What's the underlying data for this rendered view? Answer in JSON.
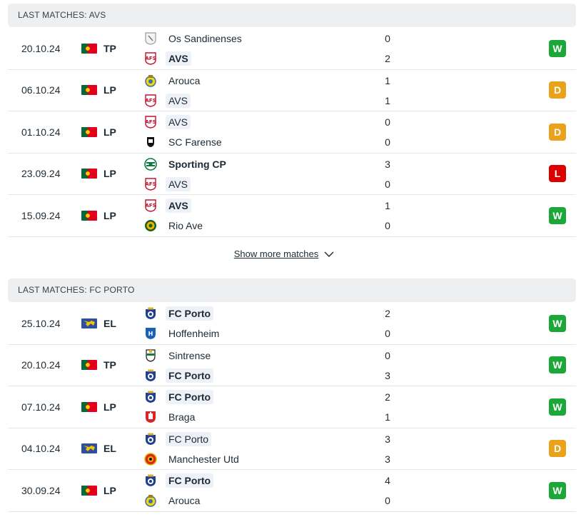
{
  "sections": [
    {
      "title": "LAST MATCHES: AVS",
      "matches": [
        {
          "date": "20.10.24",
          "flag": "portugal",
          "comp": "TP",
          "home": {
            "name": "Os Sandinenses",
            "logo": "sandinenses-logo",
            "highlight": false,
            "bold": false
          },
          "away": {
            "name": "AVS",
            "logo": "avs-logo",
            "highlight": true,
            "bold": true
          },
          "home_score": "0",
          "away_score": "2",
          "result": "W"
        },
        {
          "date": "06.10.24",
          "flag": "portugal",
          "comp": "LP",
          "home": {
            "name": "Arouca",
            "logo": "arouca-logo",
            "highlight": false,
            "bold": false
          },
          "away": {
            "name": "AVS",
            "logo": "avs-logo",
            "highlight": true,
            "bold": false
          },
          "home_score": "1",
          "away_score": "1",
          "result": "D"
        },
        {
          "date": "01.10.24",
          "flag": "portugal",
          "comp": "LP",
          "home": {
            "name": "AVS",
            "logo": "avs-logo",
            "highlight": true,
            "bold": false
          },
          "away": {
            "name": "SC Farense",
            "logo": "farense-logo",
            "highlight": false,
            "bold": false
          },
          "home_score": "0",
          "away_score": "0",
          "result": "D"
        },
        {
          "date": "23.09.24",
          "flag": "portugal",
          "comp": "LP",
          "home": {
            "name": "Sporting CP",
            "logo": "sporting-logo",
            "highlight": false,
            "bold": true
          },
          "away": {
            "name": "AVS",
            "logo": "avs-logo",
            "highlight": true,
            "bold": false
          },
          "home_score": "3",
          "away_score": "0",
          "result": "L"
        },
        {
          "date": "15.09.24",
          "flag": "portugal",
          "comp": "LP",
          "home": {
            "name": "AVS",
            "logo": "avs-logo",
            "highlight": true,
            "bold": true
          },
          "away": {
            "name": "Rio Ave",
            "logo": "rio-ave-logo",
            "highlight": false,
            "bold": false
          },
          "home_score": "1",
          "away_score": "0",
          "result": "W"
        }
      ],
      "show_more": "Show more matches"
    },
    {
      "title": "LAST MATCHES: FC PORTO",
      "matches": [
        {
          "date": "25.10.24",
          "flag": "europe",
          "comp": "EL",
          "home": {
            "name": "FC Porto",
            "logo": "porto-logo",
            "highlight": true,
            "bold": true
          },
          "away": {
            "name": "Hoffenheim",
            "logo": "hoffenheim-logo",
            "highlight": false,
            "bold": false
          },
          "home_score": "2",
          "away_score": "0",
          "result": "W"
        },
        {
          "date": "20.10.24",
          "flag": "portugal",
          "comp": "TP",
          "home": {
            "name": "Sintrense",
            "logo": "sintrense-logo",
            "highlight": false,
            "bold": false
          },
          "away": {
            "name": "FC Porto",
            "logo": "porto-logo",
            "highlight": true,
            "bold": true
          },
          "home_score": "0",
          "away_score": "3",
          "result": "W"
        },
        {
          "date": "07.10.24",
          "flag": "portugal",
          "comp": "LP",
          "home": {
            "name": "FC Porto",
            "logo": "porto-logo",
            "highlight": true,
            "bold": true
          },
          "away": {
            "name": "Braga",
            "logo": "braga-logo",
            "highlight": false,
            "bold": false
          },
          "home_score": "2",
          "away_score": "1",
          "result": "W"
        },
        {
          "date": "04.10.24",
          "flag": "europe",
          "comp": "EL",
          "home": {
            "name": "FC Porto",
            "logo": "porto-logo",
            "highlight": true,
            "bold": false
          },
          "away": {
            "name": "Manchester Utd",
            "logo": "man-utd-logo",
            "highlight": false,
            "bold": false
          },
          "home_score": "3",
          "away_score": "3",
          "result": "D"
        },
        {
          "date": "30.09.24",
          "flag": "portugal",
          "comp": "LP",
          "home": {
            "name": "FC Porto",
            "logo": "porto-logo",
            "highlight": true,
            "bold": true
          },
          "away": {
            "name": "Arouca",
            "logo": "arouca-logo",
            "highlight": false,
            "bold": false
          },
          "home_score": "4",
          "away_score": "0",
          "result": "W"
        }
      ]
    }
  ],
  "colors": {
    "win": "#1ba839",
    "draw": "#e9a21a",
    "loss": "#dc0000",
    "header_bg": "#eeeff1",
    "highlight_bg": "#eef1f8"
  }
}
